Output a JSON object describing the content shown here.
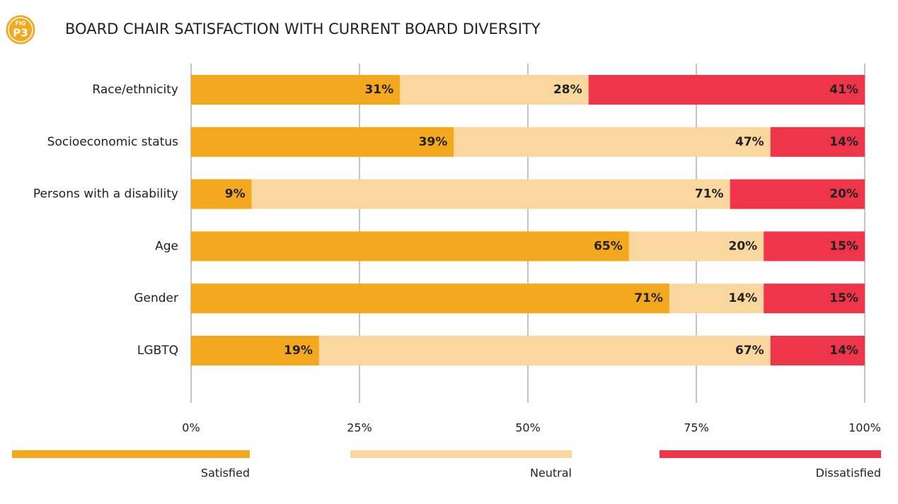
{
  "chart_data": {
    "type": "stacked_bar_horizontal",
    "figure_label": [
      "FIG",
      "P3"
    ],
    "title": "BOARD CHAIR SATISFACTION WITH CURRENT BOARD DIVERSITY",
    "categories": [
      "Race/ethnicity",
      "Socioeconomic status",
      "Persons with a disability",
      "Age",
      "Gender",
      "LGBTQ"
    ],
    "series": [
      {
        "name": "Satisfied",
        "color": "#F3A81E",
        "values": [
          31,
          39,
          9,
          65,
          71,
          19
        ],
        "value_labels": [
          "31%",
          "39%",
          "9%",
          "65%",
          "71%",
          "19%"
        ]
      },
      {
        "name": "Neutral",
        "color": "#FAD79F",
        "values": [
          28,
          47,
          71,
          20,
          14,
          67
        ],
        "value_labels": [
          "28%",
          "47%",
          "71%",
          "20%",
          "14%",
          "67%"
        ]
      },
      {
        "name": "Dissatisfied",
        "color": "#EE354A",
        "values": [
          41,
          14,
          20,
          15,
          15,
          14
        ],
        "value_labels": [
          "41%",
          "14%",
          "20%",
          "15%",
          "15%",
          "14%"
        ]
      }
    ],
    "xlim": [
      0,
      100
    ],
    "xticks": [
      {
        "value": 0,
        "label": "0%"
      },
      {
        "value": 25,
        "label": "25%"
      },
      {
        "value": 50,
        "label": "50%"
      },
      {
        "value": 75,
        "label": "75%"
      },
      {
        "value": 100,
        "label": "100%"
      }
    ],
    "grid": true,
    "legend": "bottom"
  }
}
